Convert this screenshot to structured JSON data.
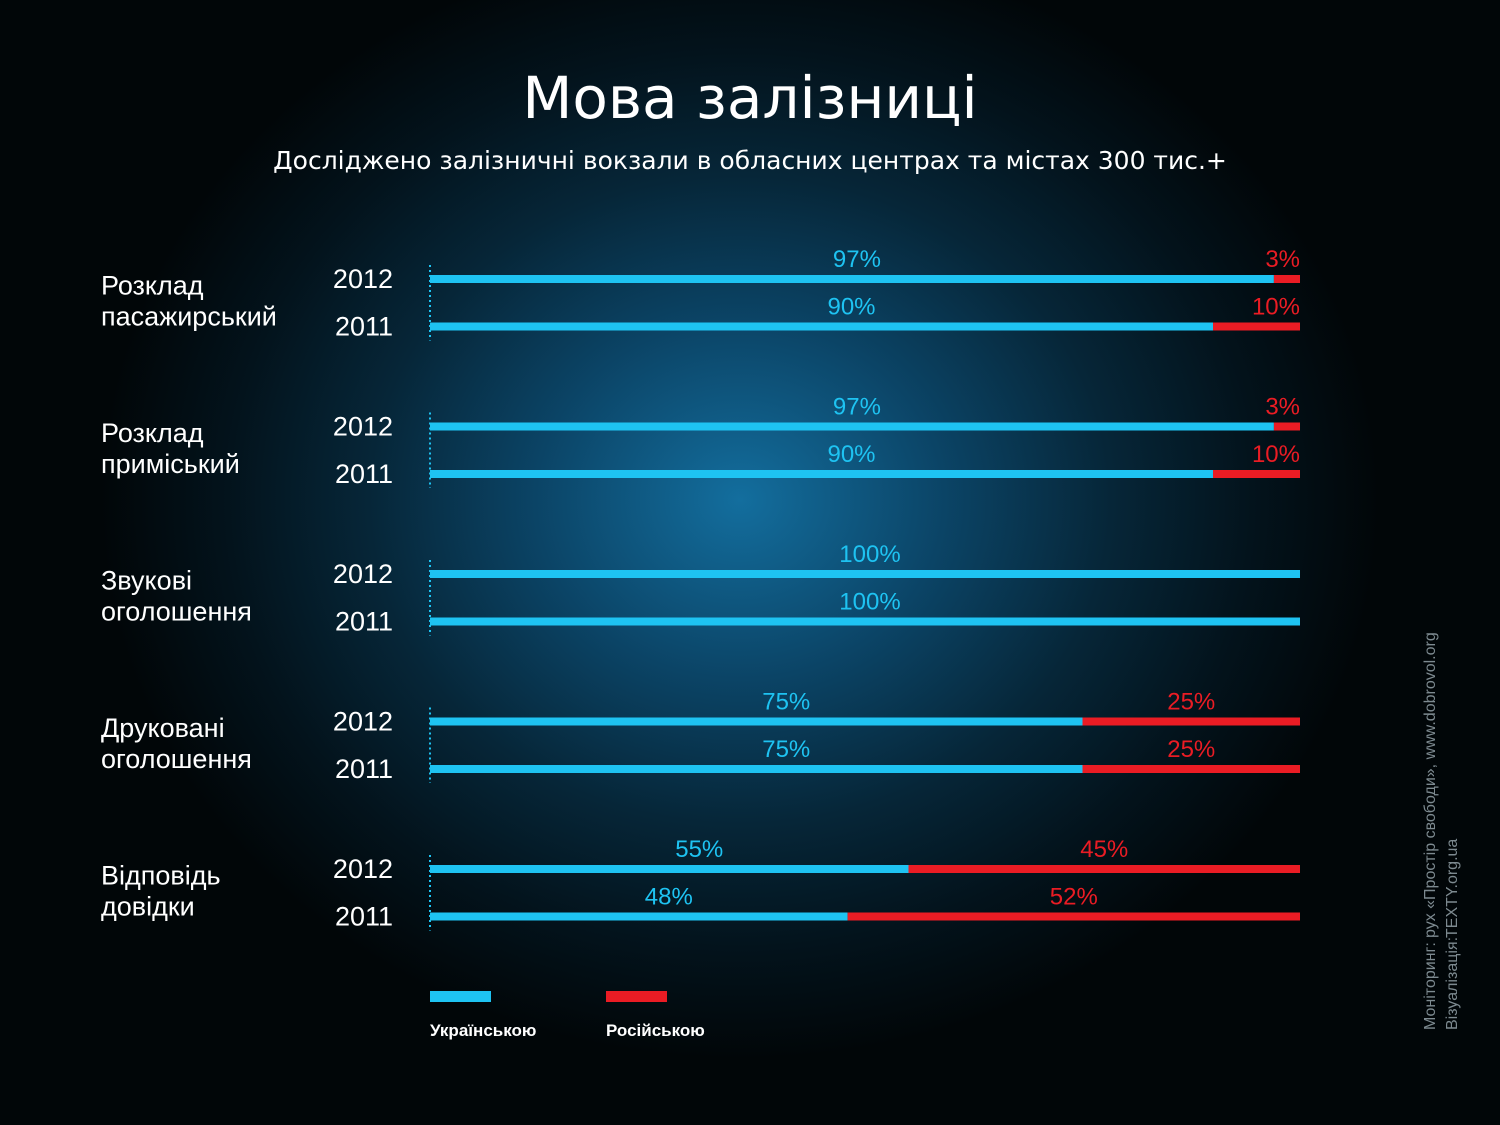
{
  "title": "Мова залізниці",
  "subtitle": "Досліджено залізничні вокзали в обласних центрах та містах 300 тис.+",
  "colors": {
    "ukrainian": "#1ec3f2",
    "russian": "#ea1c24"
  },
  "chart_data": {
    "type": "bar",
    "orientation": "horizontal",
    "stacked": true,
    "xlim": [
      0,
      100
    ],
    "legend_position": "bottom-left",
    "categories": [
      {
        "label": "Розклад пасажирський",
        "rows": [
          {
            "year": "2012",
            "ukrainian": 97,
            "russian": 3
          },
          {
            "year": "2011",
            "ukrainian": 90,
            "russian": 10
          }
        ]
      },
      {
        "label": "Розклад приміський",
        "rows": [
          {
            "year": "2012",
            "ukrainian": 97,
            "russian": 3
          },
          {
            "year": "2011",
            "ukrainian": 90,
            "russian": 10
          }
        ]
      },
      {
        "label": "Звукові оголошення",
        "rows": [
          {
            "year": "2012",
            "ukrainian": 100,
            "russian": 0
          },
          {
            "year": "2011",
            "ukrainian": 100,
            "russian": 0
          }
        ]
      },
      {
        "label": "Друковані оголошення",
        "rows": [
          {
            "year": "2012",
            "ukrainian": 75,
            "russian": 25
          },
          {
            "year": "2011",
            "ukrainian": 75,
            "russian": 25
          }
        ]
      },
      {
        "label": "Відповідь довідки",
        "rows": [
          {
            "year": "2012",
            "ukrainian": 55,
            "russian": 45
          },
          {
            "year": "2011",
            "ukrainian": 48,
            "russian": 52
          }
        ]
      }
    ],
    "series": [
      {
        "key": "ukrainian",
        "name": "Українською"
      },
      {
        "key": "russian",
        "name": "Російською"
      }
    ]
  },
  "credits": {
    "monitoring_label": "Моніторинг:",
    "monitoring_value": "рух «Простір свободи», www.dobrovol.org",
    "visualization_label": "Візуалізація:",
    "visualization_value": "TEXTY.org.ua"
  }
}
